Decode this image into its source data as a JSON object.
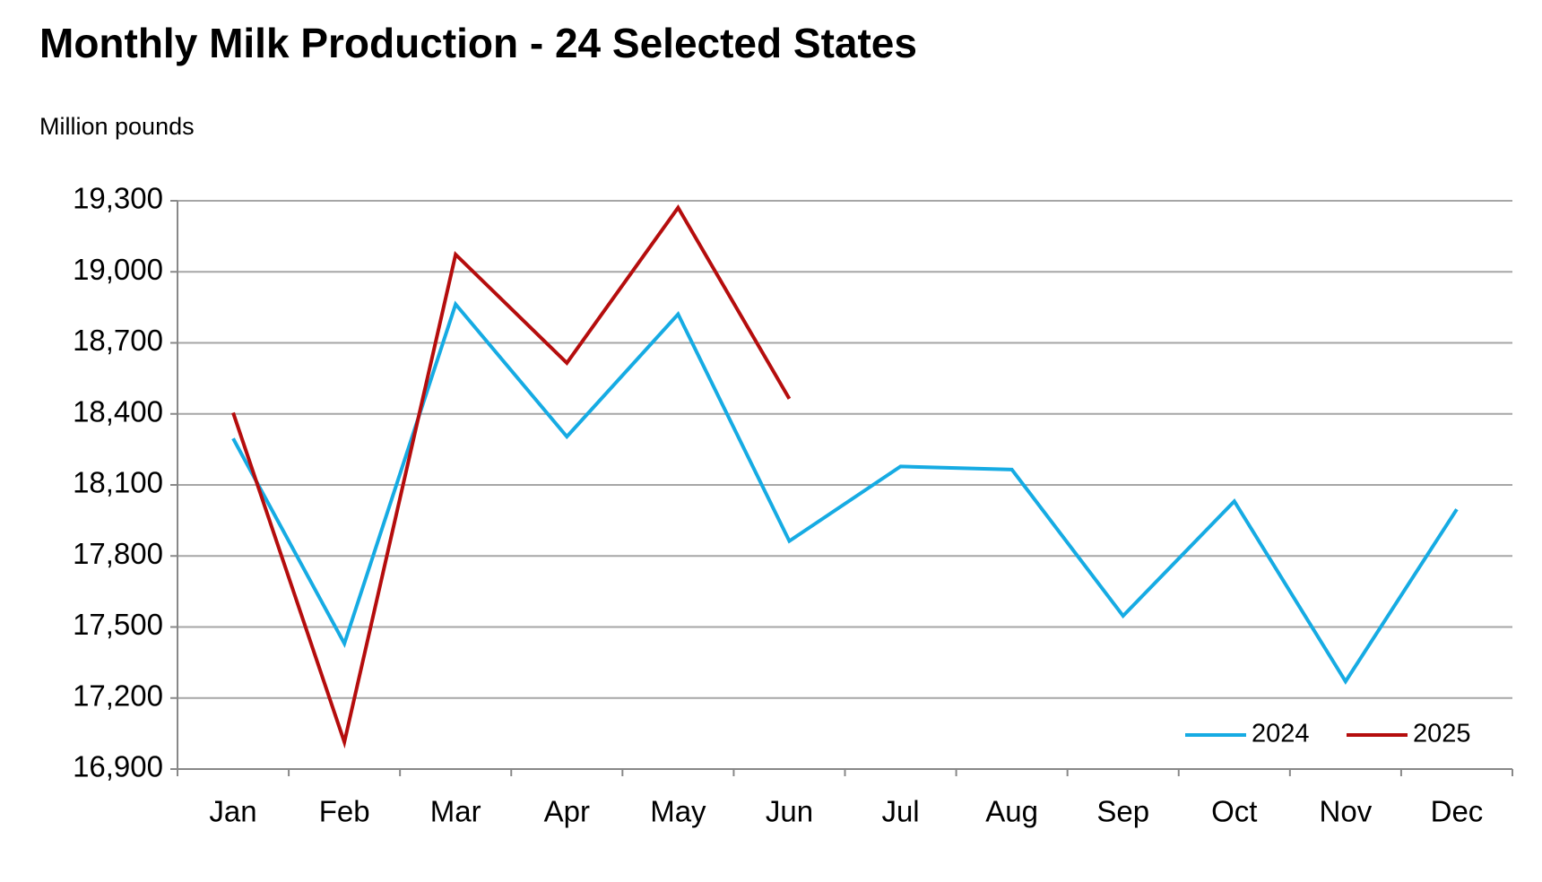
{
  "chart_data": {
    "type": "line",
    "title": "Monthly Milk Production - 24 Selected States",
    "y_label": "Million pounds",
    "categories": [
      "Jan",
      "Feb",
      "Mar",
      "Apr",
      "May",
      "Jun",
      "Jul",
      "Aug",
      "Sep",
      "Oct",
      "Nov",
      "Dec"
    ],
    "series": [
      {
        "name": "2024",
        "color": "#16abe3",
        "values": [
          18296,
          17430,
          18863,
          18304,
          18821,
          17863,
          18178,
          18165,
          17547,
          18031,
          17270,
          17997
        ]
      },
      {
        "name": "2025",
        "color": "#b50d0d",
        "values": [
          18405,
          17014,
          19073,
          18615,
          19271,
          18464,
          null,
          null,
          null,
          null,
          null,
          null
        ]
      }
    ],
    "ylim": [
      16900,
      19300
    ],
    "yticks": [
      {
        "value": 16900,
        "label": "16,900"
      },
      {
        "value": 17200,
        "label": "17,200"
      },
      {
        "value": 17500,
        "label": "17,500"
      },
      {
        "value": 17800,
        "label": "17,800"
      },
      {
        "value": 18100,
        "label": "18,100"
      },
      {
        "value": 18400,
        "label": "18,400"
      },
      {
        "value": 18700,
        "label": "18,700"
      },
      {
        "value": 19000,
        "label": "19,000"
      },
      {
        "value": 19300,
        "label": "19,300"
      }
    ],
    "grid": true,
    "legend": "lower right"
  }
}
